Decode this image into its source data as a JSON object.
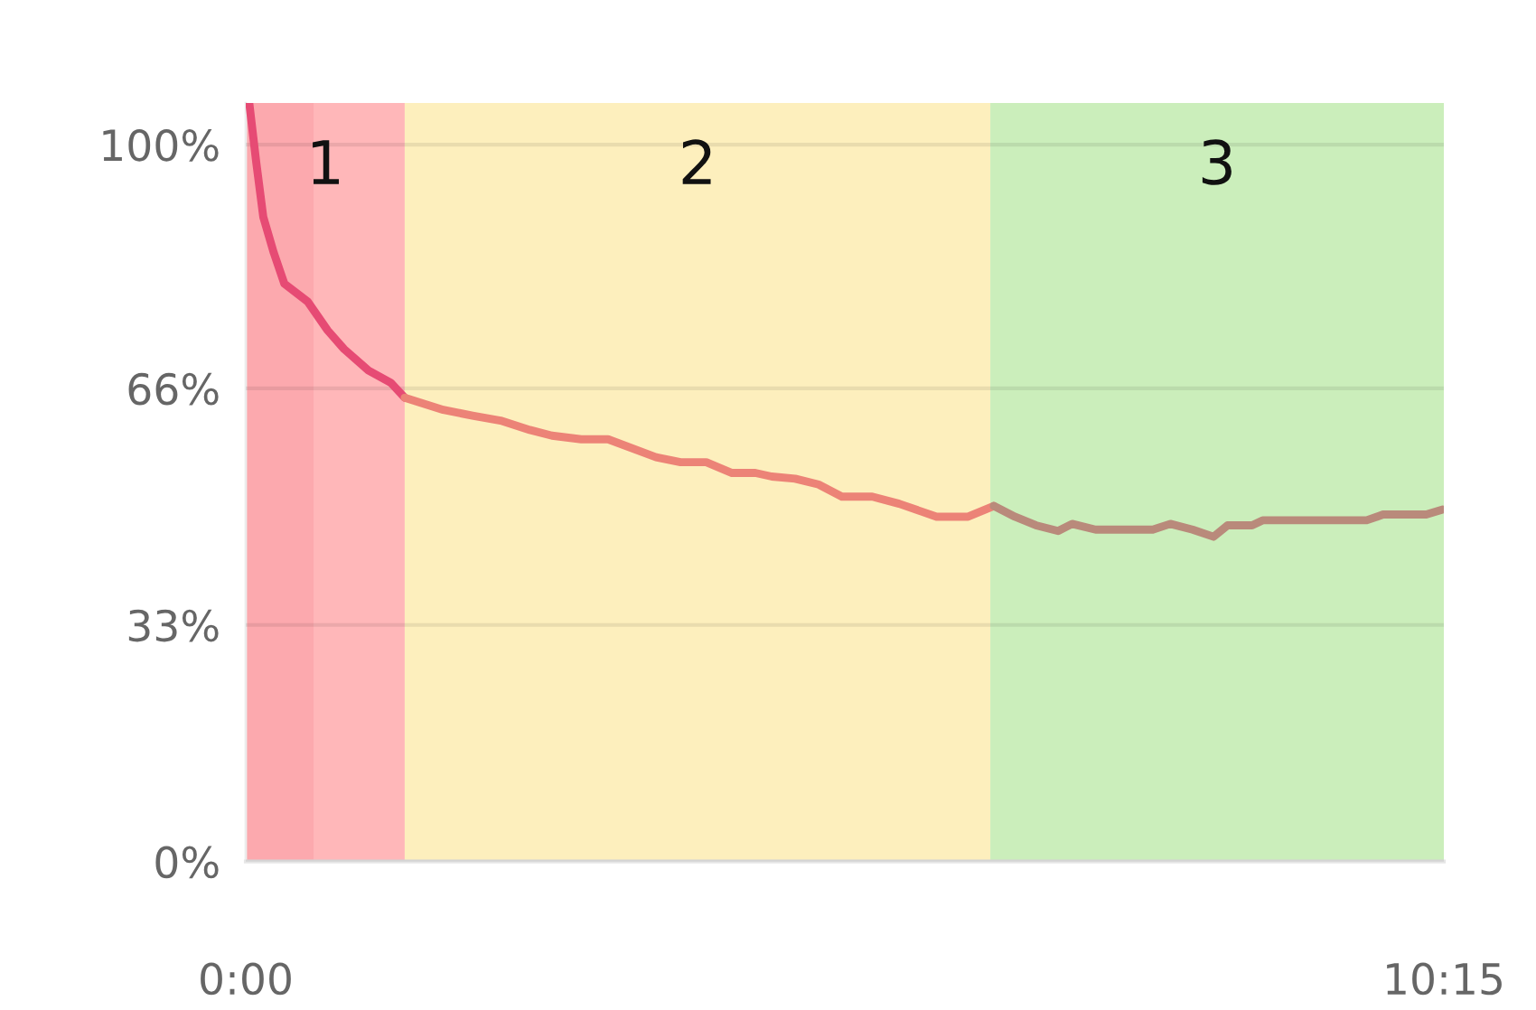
{
  "chart_data": {
    "type": "line",
    "xlim": [
      0,
      10.25
    ],
    "ylim": [
      0,
      105.8
    ],
    "xticks": [
      {
        "value": 0,
        "label": "0:00"
      },
      {
        "value": 10.25,
        "label": "10:15"
      }
    ],
    "yticks": [
      {
        "value": 0,
        "label": "0%"
      },
      {
        "value": 33,
        "label": "33%"
      },
      {
        "value": 66,
        "label": "66%"
      },
      {
        "value": 100,
        "label": "100%"
      }
    ],
    "grid": "y",
    "legend": false,
    "marker": "none",
    "line_style": "solid",
    "bands": [
      {
        "axis": "x",
        "from": 0,
        "to": 1.36,
        "label": "1",
        "color": "#ffb7b9"
      },
      {
        "axis": "x",
        "from": 0,
        "to": 0.58,
        "label": null,
        "color": "#fca9ae"
      },
      {
        "axis": "x",
        "from": 1.36,
        "to": 6.37,
        "label": "2",
        "color": "#fdefbd"
      },
      {
        "axis": "x",
        "from": 6.37,
        "to": 10.25,
        "label": "3",
        "color": "#cbeebb"
      }
    ],
    "series": [
      {
        "color": "#e64b74",
        "x": [
          0.03,
          0.09,
          0.15,
          0.24,
          0.33,
          0.53,
          0.7,
          0.84,
          1.05,
          1.24,
          1.36
        ],
        "values": [
          105.8,
          97.5,
          89.9,
          84.9,
          80.6,
          78.1,
          74.1,
          71.5,
          68.5,
          66.8,
          64.7
        ]
      },
      {
        "color": "#ec8377",
        "x": [
          1.36,
          1.69,
          1.94,
          2.18,
          2.43,
          2.62,
          2.87,
          3.1,
          3.51,
          3.72,
          3.94,
          4.16,
          4.36,
          4.5,
          4.7,
          4.9,
          5.1,
          5.36,
          5.59,
          5.91,
          6.18,
          6.4
        ],
        "values": [
          64.7,
          63.0,
          62.2,
          61.5,
          60.2,
          59.4,
          58.9,
          58.9,
          56.4,
          55.7,
          55.7,
          54.2,
          54.2,
          53.7,
          53.4,
          52.6,
          50.9,
          50.9,
          49.9,
          48.1,
          48.1,
          49.6
        ]
      },
      {
        "color": "#b98a7b",
        "x": [
          6.4,
          6.58,
          6.76,
          6.95,
          7.07,
          7.27,
          7.76,
          7.91,
          8.1,
          8.28,
          8.4,
          8.61,
          8.7,
          9.59,
          9.73,
          10.1,
          10.24
        ],
        "values": [
          49.6,
          48.1,
          46.9,
          46.1,
          47.1,
          46.3,
          46.3,
          47.1,
          46.3,
          45.3,
          46.9,
          46.9,
          47.6,
          47.6,
          48.4,
          48.4,
          49.1
        ]
      }
    ]
  }
}
